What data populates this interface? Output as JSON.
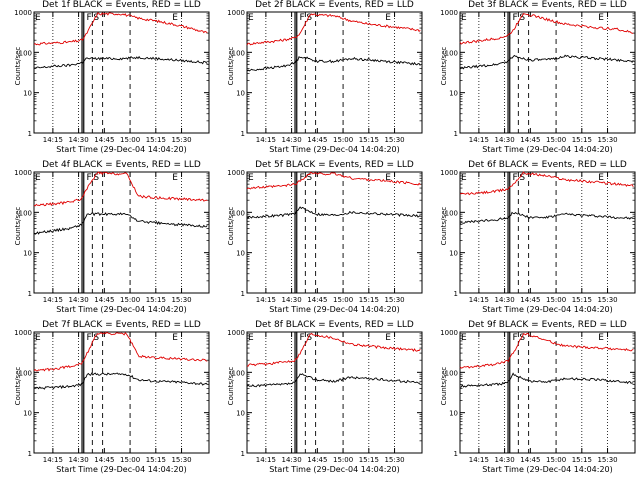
{
  "colors": {
    "events": "#000000",
    "lld": "#e00000",
    "background": "#ffffff"
  },
  "chart_data": [
    {
      "type": "line",
      "title": "Det 1f BLACK = Events, RED = LLD",
      "xlabel": "Start Time (29-Dec-04 14:04:20)",
      "ylabel": "Counts/sec",
      "xlim": [
        "14:04",
        "15:46"
      ],
      "ylim": [
        1,
        1000
      ],
      "yscale": "log",
      "xticks": [
        "14:15",
        "14:30",
        "14:45",
        "15:00",
        "15:15",
        "15:30"
      ],
      "yticks": [
        "1",
        "10",
        "100",
        "1000"
      ],
      "markers": [
        {
          "label": "E",
          "at": "14:04"
        },
        {
          "label": "F",
          "at": "14:34"
        },
        {
          "label": "S",
          "at": "14:38"
        },
        {
          "label": "E",
          "at": "15:24"
        }
      ],
      "series": [
        {
          "name": "LLD",
          "x": [
            "14:04",
            "14:15",
            "14:25",
            "14:32",
            "14:34",
            "14:41",
            "14:45",
            "14:55",
            "15:05",
            "15:15",
            "15:25",
            "15:35",
            "15:45"
          ],
          "values": [
            160,
            170,
            180,
            200,
            260,
            900,
            900,
            900,
            700,
            600,
            500,
            400,
            300
          ]
        },
        {
          "name": "Events",
          "x": [
            "14:04",
            "14:15",
            "14:25",
            "14:32",
            "14:34",
            "14:45",
            "14:55",
            "15:05",
            "15:15",
            "15:25",
            "15:35",
            "15:45"
          ],
          "values": [
            40,
            45,
            48,
            55,
            70,
            70,
            70,
            75,
            70,
            65,
            60,
            55
          ]
        }
      ]
    },
    {
      "type": "line",
      "title": "Det 2f BLACK = Events, RED = LLD",
      "xlabel": "Start Time (29-Dec-04 14:04:20)",
      "ylabel": "Counts/sec",
      "xlim": [
        "14:04",
        "15:46"
      ],
      "ylim": [
        1,
        1000
      ],
      "yscale": "log",
      "xticks": [
        "14:15",
        "14:30",
        "14:45",
        "15:00",
        "15:15",
        "15:30"
      ],
      "yticks": [
        "1",
        "10",
        "100",
        "1000"
      ],
      "markers": [
        {
          "label": "E",
          "at": "14:04"
        },
        {
          "label": "F",
          "at": "14:34"
        },
        {
          "label": "S",
          "at": "14:38"
        },
        {
          "label": "E",
          "at": "15:24"
        }
      ],
      "series": [
        {
          "name": "LLD",
          "x": [
            "14:04",
            "14:15",
            "14:25",
            "14:32",
            "14:35",
            "14:41",
            "14:45",
            "14:55",
            "15:05",
            "15:15",
            "15:25",
            "15:35",
            "15:45"
          ],
          "values": [
            160,
            180,
            200,
            230,
            300,
            900,
            850,
            800,
            600,
            500,
            450,
            400,
            350
          ]
        },
        {
          "name": "Events",
          "x": [
            "14:04",
            "14:15",
            "14:25",
            "14:32",
            "14:35",
            "14:45",
            "14:55",
            "15:05",
            "15:15",
            "15:25",
            "15:35",
            "15:45"
          ],
          "values": [
            35,
            40,
            45,
            55,
            80,
            60,
            60,
            70,
            65,
            60,
            55,
            50
          ]
        }
      ]
    },
    {
      "type": "line",
      "title": "Det 3f BLACK = Events, RED = LLD",
      "xlabel": "Start Time (29-Dec-04 14:04:20)",
      "ylabel": "Counts/sec",
      "xlim": [
        "14:04",
        "15:46"
      ],
      "ylim": [
        1,
        1000
      ],
      "yscale": "log",
      "xticks": [
        "14:15",
        "14:30",
        "14:45",
        "15:00",
        "15:15",
        "15:30"
      ],
      "yticks": [
        "1",
        "10",
        "100",
        "1000"
      ],
      "markers": [
        {
          "label": "E",
          "at": "14:04"
        },
        {
          "label": "F",
          "at": "14:34"
        },
        {
          "label": "S",
          "at": "14:38"
        },
        {
          "label": "E",
          "at": "15:24"
        }
      ],
      "series": [
        {
          "name": "LLD",
          "x": [
            "14:04",
            "14:15",
            "14:25",
            "14:32",
            "14:35",
            "14:41",
            "14:45",
            "14:55",
            "15:05",
            "15:15",
            "15:25",
            "15:35",
            "15:45"
          ],
          "values": [
            170,
            190,
            220,
            260,
            350,
            950,
            850,
            650,
            500,
            450,
            400,
            380,
            300
          ]
        },
        {
          "name": "Events",
          "x": [
            "14:04",
            "14:15",
            "14:25",
            "14:32",
            "14:35",
            "14:45",
            "14:55",
            "15:05",
            "15:15",
            "15:25",
            "15:35",
            "15:45"
          ],
          "values": [
            40,
            45,
            50,
            60,
            80,
            65,
            65,
            80,
            75,
            70,
            65,
            60
          ]
        }
      ]
    },
    {
      "type": "line",
      "title": "Det 4f BLACK = Events, RED = LLD",
      "xlabel": "Start Time (29-Dec-04 14:04:20)",
      "ylabel": "Counts/sec",
      "xlim": [
        "14:04",
        "15:46"
      ],
      "ylim": [
        1,
        1000
      ],
      "yscale": "log",
      "xticks": [
        "14:15",
        "14:30",
        "14:45",
        "15:00",
        "15:15",
        "15:30"
      ],
      "yticks": [
        "1",
        "10",
        "100",
        "1000"
      ],
      "markers": [
        {
          "label": "E",
          "at": "14:04"
        },
        {
          "label": "F",
          "at": "14:34"
        },
        {
          "label": "S",
          "at": "14:38"
        },
        {
          "label": "E",
          "at": "15:24"
        }
      ],
      "series": [
        {
          "name": "LLD",
          "x": [
            "14:04",
            "14:15",
            "14:25",
            "14:32",
            "14:35",
            "14:41",
            "14:50",
            "14:58",
            "15:05",
            "15:15",
            "15:25",
            "15:35",
            "15:45"
          ],
          "values": [
            150,
            160,
            180,
            220,
            400,
            950,
            900,
            900,
            250,
            230,
            220,
            210,
            200
          ]
        },
        {
          "name": "Events",
          "x": [
            "14:04",
            "14:15",
            "14:25",
            "14:32",
            "14:35",
            "14:50",
            "14:58",
            "15:05",
            "15:15",
            "15:25",
            "15:35",
            "15:45"
          ],
          "values": [
            30,
            35,
            40,
            50,
            90,
            90,
            90,
            60,
            55,
            50,
            48,
            45
          ]
        }
      ]
    },
    {
      "type": "line",
      "title": "Det 5f BLACK = Events, RED = LLD",
      "xlabel": "Start Time (29-Dec-04 14:04:20)",
      "ylabel": "Counts/sec",
      "xlim": [
        "14:04",
        "15:46"
      ],
      "ylim": [
        1,
        1000
      ],
      "yscale": "log",
      "xticks": [
        "14:15",
        "14:30",
        "14:45",
        "15:00",
        "15:15",
        "15:30"
      ],
      "yticks": [
        "1",
        "10",
        "100",
        "1000"
      ],
      "markers": [
        {
          "label": "E",
          "at": "14:04"
        },
        {
          "label": "F",
          "at": "14:34"
        },
        {
          "label": "S",
          "at": "14:38"
        },
        {
          "label": "E",
          "at": "15:24"
        }
      ],
      "series": [
        {
          "name": "LLD",
          "x": [
            "14:04",
            "14:15",
            "14:25",
            "14:32",
            "14:35",
            "14:41",
            "14:45",
            "14:55",
            "15:05",
            "15:15",
            "15:25",
            "15:35",
            "15:45"
          ],
          "values": [
            400,
            420,
            450,
            500,
            600,
            950,
            900,
            900,
            700,
            650,
            600,
            550,
            500
          ]
        },
        {
          "name": "Events",
          "x": [
            "14:04",
            "14:15",
            "14:25",
            "14:32",
            "14:35",
            "14:45",
            "14:55",
            "15:05",
            "15:15",
            "15:25",
            "15:35",
            "15:45"
          ],
          "values": [
            75,
            80,
            85,
            95,
            130,
            90,
            85,
            100,
            95,
            90,
            85,
            80
          ]
        }
      ]
    },
    {
      "type": "line",
      "title": "Det 6f BLACK = Events, RED = LLD",
      "xlabel": "Start Time (29-Dec-04 14:04:20)",
      "ylabel": "Counts/sec",
      "xlim": [
        "14:04",
        "15:46"
      ],
      "ylim": [
        1,
        1000
      ],
      "yscale": "log",
      "xticks": [
        "14:15",
        "14:30",
        "14:45",
        "15:00",
        "15:15",
        "15:30"
      ],
      "yticks": [
        "1",
        "10",
        "100",
        "1000"
      ],
      "markers": [
        {
          "label": "E",
          "at": "14:04"
        },
        {
          "label": "F",
          "at": "14:34"
        },
        {
          "label": "S",
          "at": "14:38"
        },
        {
          "label": "E",
          "at": "15:24"
        }
      ],
      "series": [
        {
          "name": "LLD",
          "x": [
            "14:04",
            "14:15",
            "14:25",
            "14:32",
            "14:35",
            "14:41",
            "14:45",
            "14:55",
            "15:05",
            "15:15",
            "15:25",
            "15:35",
            "15:45"
          ],
          "values": [
            280,
            300,
            330,
            380,
            500,
            950,
            900,
            800,
            650,
            600,
            550,
            500,
            450
          ]
        },
        {
          "name": "Events",
          "x": [
            "14:04",
            "14:15",
            "14:25",
            "14:32",
            "14:35",
            "14:45",
            "14:55",
            "15:05",
            "15:15",
            "15:25",
            "15:35",
            "15:45"
          ],
          "values": [
            55,
            60,
            65,
            75,
            100,
            75,
            75,
            90,
            85,
            80,
            75,
            70
          ]
        }
      ]
    },
    {
      "type": "line",
      "title": "Det 7f BLACK = Events, RED = LLD",
      "xlabel": "Start Time (29-Dec-04 14:04:20)",
      "ylabel": "Counts/sec",
      "xlim": [
        "14:04",
        "15:46"
      ],
      "ylim": [
        1,
        1000
      ],
      "yscale": "log",
      "xticks": [
        "14:15",
        "14:30",
        "14:45",
        "15:00",
        "15:15",
        "15:30"
      ],
      "yticks": [
        "1",
        "10",
        "100",
        "1000"
      ],
      "markers": [
        {
          "label": "E",
          "at": "14:04"
        },
        {
          "label": "F",
          "at": "14:34"
        },
        {
          "label": "S",
          "at": "14:38"
        },
        {
          "label": "E",
          "at": "15:24"
        }
      ],
      "series": [
        {
          "name": "LLD",
          "x": [
            "14:04",
            "14:15",
            "14:25",
            "14:32",
            "14:35",
            "14:41",
            "14:50",
            "14:58",
            "15:05",
            "15:15",
            "15:25",
            "15:35",
            "15:45"
          ],
          "values": [
            110,
            120,
            140,
            170,
            300,
            950,
            900,
            900,
            250,
            230,
            220,
            210,
            200
          ]
        },
        {
          "name": "Events",
          "x": [
            "14:04",
            "14:15",
            "14:25",
            "14:32",
            "14:35",
            "14:50",
            "14:58",
            "15:05",
            "15:15",
            "15:25",
            "15:35",
            "15:45"
          ],
          "values": [
            40,
            42,
            45,
            50,
            90,
            90,
            90,
            65,
            60,
            58,
            55,
            50
          ]
        }
      ]
    },
    {
      "type": "line",
      "title": "Det 8f BLACK = Events, RED = LLD",
      "xlabel": "Start Time (29-Dec-04 14:04:20)",
      "ylabel": "Counts/sec",
      "xlim": [
        "14:04",
        "15:46"
      ],
      "ylim": [
        1,
        1000
      ],
      "yscale": "log",
      "xticks": [
        "14:15",
        "14:30",
        "14:45",
        "15:00",
        "15:15",
        "15:30"
      ],
      "yticks": [
        "1",
        "10",
        "100",
        "1000"
      ],
      "markers": [
        {
          "label": "E",
          "at": "14:04"
        },
        {
          "label": "F",
          "at": "14:34"
        },
        {
          "label": "S",
          "at": "14:38"
        },
        {
          "label": "E",
          "at": "15:24"
        }
      ],
      "series": [
        {
          "name": "LLD",
          "x": [
            "14:04",
            "14:15",
            "14:25",
            "14:32",
            "14:35",
            "14:41",
            "14:45",
            "14:55",
            "15:05",
            "15:15",
            "15:25",
            "15:35",
            "15:45"
          ],
          "values": [
            150,
            160,
            180,
            200,
            300,
            900,
            850,
            700,
            500,
            450,
            400,
            380,
            350
          ]
        },
        {
          "name": "Events",
          "x": [
            "14:04",
            "14:15",
            "14:25",
            "14:32",
            "14:35",
            "14:45",
            "14:55",
            "15:05",
            "15:15",
            "15:25",
            "15:35",
            "15:45"
          ],
          "values": [
            45,
            48,
            50,
            55,
            90,
            65,
            60,
            75,
            70,
            65,
            60,
            55
          ]
        }
      ]
    },
    {
      "type": "line",
      "title": "Det 9f BLACK = Events, RED = LLD",
      "xlabel": "Start Time (29-Dec-04 14:04:20)",
      "ylabel": "Counts/sec",
      "xlim": [
        "14:04",
        "15:46"
      ],
      "ylim": [
        1,
        1000
      ],
      "yscale": "log",
      "xticks": [
        "14:15",
        "14:30",
        "14:45",
        "15:00",
        "15:15",
        "15:30"
      ],
      "yticks": [
        "1",
        "10",
        "100",
        "1000"
      ],
      "markers": [
        {
          "label": "E",
          "at": "14:04"
        },
        {
          "label": "F",
          "at": "14:34"
        },
        {
          "label": "S",
          "at": "14:38"
        },
        {
          "label": "E",
          "at": "15:24"
        }
      ],
      "series": [
        {
          "name": "LLD",
          "x": [
            "14:04",
            "14:15",
            "14:25",
            "14:32",
            "14:35",
            "14:41",
            "14:45",
            "14:55",
            "15:05",
            "15:15",
            "15:25",
            "15:35",
            "15:45"
          ],
          "values": [
            130,
            140,
            160,
            190,
            300,
            900,
            850,
            600,
            450,
            420,
            400,
            380,
            350
          ]
        },
        {
          "name": "Events",
          "x": [
            "14:04",
            "14:15",
            "14:25",
            "14:32",
            "14:35",
            "14:45",
            "14:55",
            "15:05",
            "15:15",
            "15:25",
            "15:35",
            "15:45"
          ],
          "values": [
            45,
            48,
            50,
            55,
            90,
            60,
            58,
            70,
            68,
            65,
            60,
            55
          ]
        }
      ]
    }
  ]
}
